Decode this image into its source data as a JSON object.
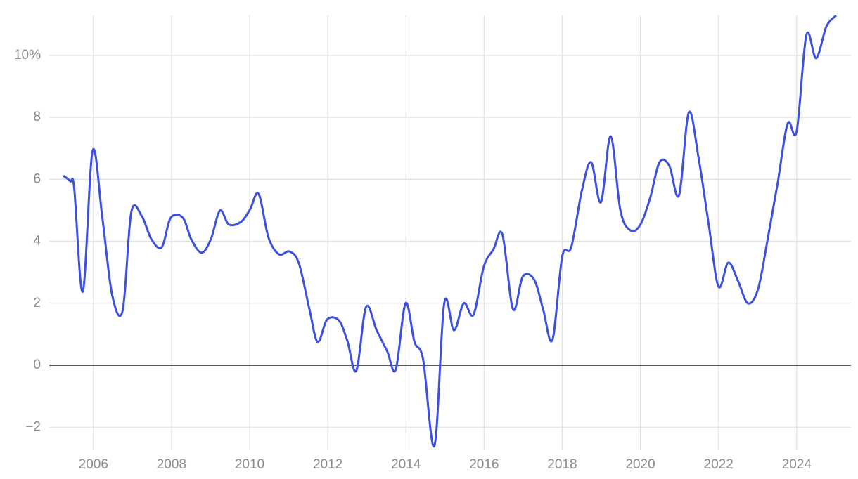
{
  "chart_data": {
    "type": "line",
    "x": [
      2005.23,
      2005.41,
      2005.51,
      2005.73,
      2005.98,
      2006.23,
      2006.48,
      2006.75,
      2006.97,
      2007.24,
      2007.48,
      2007.75,
      2007.98,
      2008.29,
      2008.5,
      2008.77,
      2009.01,
      2009.24,
      2009.47,
      2009.78,
      2010.01,
      2010.23,
      2010.48,
      2010.75,
      2011.02,
      2011.26,
      2011.53,
      2011.74,
      2011.98,
      2012.28,
      2012.5,
      2012.73,
      2012.98,
      2013.25,
      2013.52,
      2013.74,
      2013.99,
      2014.22,
      2014.44,
      2014.73,
      2014.98,
      2015.23,
      2015.48,
      2015.73,
      2015.99,
      2016.24,
      2016.47,
      2016.74,
      2016.99,
      2017.28,
      2017.51,
      2017.75,
      2018.0,
      2018.23,
      2018.5,
      2018.74,
      2018.99,
      2019.24,
      2019.49,
      2019.75,
      2020.0,
      2020.25,
      2020.49,
      2020.74,
      2020.99,
      2021.24,
      2021.49,
      2021.75,
      2022.0,
      2022.25,
      2022.5,
      2022.75,
      2023.01,
      2023.26,
      2023.51,
      2023.77,
      2024.0,
      2024.25,
      2024.5,
      2024.76,
      2025.01
    ],
    "series": [
      {
        "color": "#3d50e0",
        "values": [
          6.12,
          5.94,
          5.7,
          2.38,
          6.92,
          4.76,
          2.27,
          1.77,
          4.94,
          4.81,
          4.08,
          3.81,
          4.76,
          4.76,
          4.08,
          3.63,
          4.08,
          4.99,
          4.54,
          4.63,
          5.03,
          5.53,
          4.13,
          3.58,
          3.67,
          3.29,
          1.81,
          0.75,
          1.47,
          1.45,
          0.79,
          -0.18,
          1.88,
          1.13,
          0.45,
          -0.14,
          2.0,
          0.75,
          0.18,
          -2.6,
          2.0,
          1.13,
          2.0,
          1.63,
          3.17,
          3.74,
          4.22,
          1.81,
          2.86,
          2.77,
          1.81,
          0.82,
          3.51,
          3.81,
          5.62,
          6.55,
          5.26,
          7.39,
          4.99,
          4.35,
          4.54,
          5.4,
          6.55,
          6.44,
          5.49,
          8.16,
          6.69,
          4.54,
          2.54,
          3.31,
          2.72,
          2.0,
          2.45,
          4.08,
          5.85,
          7.8,
          7.55,
          10.66,
          9.91,
          10.93,
          11.29
        ]
      }
    ],
    "xlim": [
      2004.87,
      2025.39
    ],
    "xticks": [
      2006,
      2008,
      2010,
      2012,
      2014,
      2016,
      2018,
      2020,
      2022,
      2024
    ],
    "ylim": [
      -2.72,
      11.38
    ],
    "yticks": [
      {
        "value": -2,
        "label": "−2"
      },
      0,
      2,
      4,
      6,
      8,
      {
        "value": 10,
        "label": "10%"
      }
    ],
    "grid": true
  }
}
